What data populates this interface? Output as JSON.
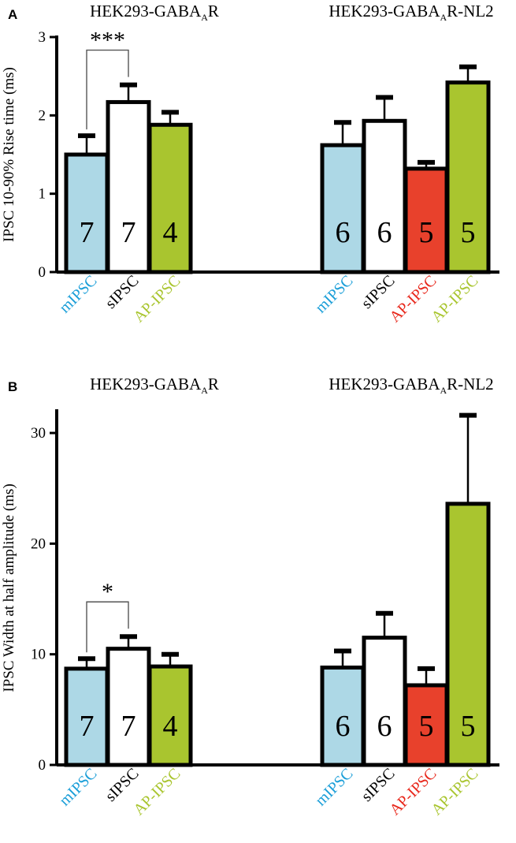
{
  "colors": {
    "mIPSC": "#add8e6",
    "sIPSC": "#ffffff",
    "AP-IPSC-red": "#e8412c",
    "AP-IPSC-green": "#a9c52f",
    "label-mIPSC": "#1a9ed8",
    "label-sIPSC": "#000000",
    "label-AP-red": "#e8281c",
    "label-AP-green": "#a9c52f"
  },
  "chart_data": [
    {
      "type": "bar",
      "panel": "A",
      "ylabel": "IPSC 10-90% Rise time (ms)",
      "ylim": [
        0,
        3
      ],
      "yticks": [
        0,
        1,
        2,
        3
      ],
      "yticklabels": [
        "0",
        "1",
        "2",
        "3"
      ],
      "groups": [
        {
          "title": "HEK293-GABA",
          "title_sub": "A",
          "title_suffix": "R",
          "bars": [
            {
              "category": "mIPSC",
              "value": 1.5,
              "error": 0.24,
              "n": "7",
              "color_key": "mIPSC",
              "label_color_key": "label-mIPSC"
            },
            {
              "category": "sIPSC",
              "value": 2.17,
              "error": 0.22,
              "n": "7",
              "color_key": "sIPSC",
              "label_color_key": "label-sIPSC"
            },
            {
              "category": "AP-IPSC",
              "value": 1.88,
              "error": 0.16,
              "n": "4",
              "color_key": "AP-IPSC-green",
              "label_color_key": "label-AP-green"
            }
          ],
          "significance": {
            "from": 0,
            "to": 1,
            "label": "***"
          }
        },
        {
          "title": "HEK293-GABA",
          "title_sub": "A",
          "title_suffix": "R-NL2",
          "bars": [
            {
              "category": "mIPSC",
              "value": 1.62,
              "error": 0.29,
              "n": "6",
              "color_key": "mIPSC",
              "label_color_key": "label-mIPSC"
            },
            {
              "category": "sIPSC",
              "value": 1.93,
              "error": 0.3,
              "n": "6",
              "color_key": "sIPSC",
              "label_color_key": "label-sIPSC"
            },
            {
              "category": "AP-IPSC",
              "value": 1.32,
              "error": 0.08,
              "n": "5",
              "color_key": "AP-IPSC-red",
              "label_color_key": "label-AP-red"
            },
            {
              "category": "AP-IPSC",
              "value": 2.42,
              "error": 0.2,
              "n": "5",
              "color_key": "AP-IPSC-green",
              "label_color_key": "label-AP-green"
            }
          ]
        }
      ]
    },
    {
      "type": "bar",
      "panel": "B",
      "ylabel": "IPSC Width at half amplitude (ms)",
      "ylim": [
        0,
        32
      ],
      "yticks": [
        0,
        10,
        20,
        30
      ],
      "yticklabels": [
        "0",
        "10",
        "20",
        "30"
      ],
      "groups": [
        {
          "title": "HEK293-GABA",
          "title_sub": "A",
          "title_suffix": "R",
          "bars": [
            {
              "category": "mIPSC",
              "value": 8.7,
              "error": 0.9,
              "n": "7",
              "color_key": "mIPSC",
              "label_color_key": "label-mIPSC"
            },
            {
              "category": "sIPSC",
              "value": 10.5,
              "error": 1.1,
              "n": "7",
              "color_key": "sIPSC",
              "label_color_key": "label-sIPSC"
            },
            {
              "category": "AP-IPSC",
              "value": 8.9,
              "error": 1.1,
              "n": "4",
              "color_key": "AP-IPSC-green",
              "label_color_key": "label-AP-green"
            }
          ],
          "significance": {
            "from": 0,
            "to": 1,
            "label": "*"
          }
        },
        {
          "title": "HEK293-GABA",
          "title_sub": "A",
          "title_suffix": "R-NL2",
          "bars": [
            {
              "category": "mIPSC",
              "value": 8.8,
              "error": 1.5,
              "n": "6",
              "color_key": "mIPSC",
              "label_color_key": "label-mIPSC"
            },
            {
              "category": "sIPSC",
              "value": 11.5,
              "error": 2.2,
              "n": "6",
              "color_key": "sIPSC",
              "label_color_key": "label-sIPSC"
            },
            {
              "category": "AP-IPSC",
              "value": 7.2,
              "error": 1.5,
              "n": "5",
              "color_key": "AP-IPSC-red",
              "label_color_key": "label-AP-red"
            },
            {
              "category": "AP-IPSC",
              "value": 23.6,
              "error": 8.0,
              "n": "5",
              "color_key": "AP-IPSC-green",
              "label_color_key": "label-AP-green"
            }
          ]
        }
      ]
    }
  ]
}
